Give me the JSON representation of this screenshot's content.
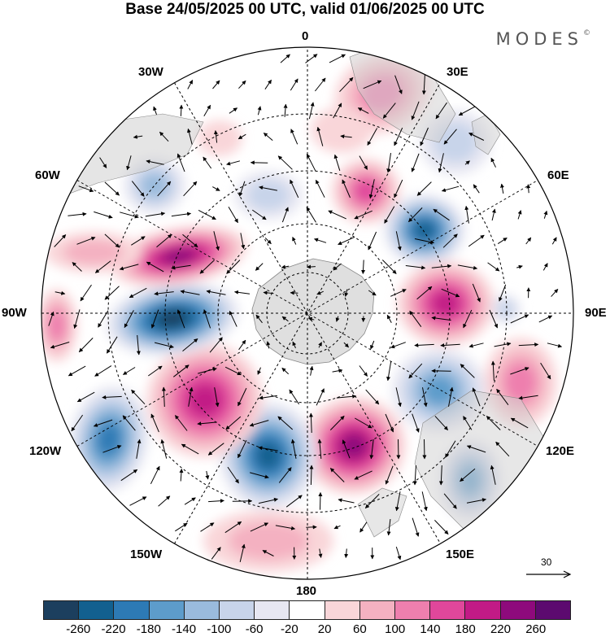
{
  "header": {
    "title": "Base 24/05/2025 00 UTC, valid 01/06/2025 00 UTC",
    "brand": "MODES",
    "brand_mark": "©"
  },
  "map": {
    "projection": "south-polar-stereographic",
    "ocean_color": "#ffffff",
    "land_color": "#d9d9d9",
    "longitude_labels": {
      "top": "0",
      "e30": "30E",
      "e60": "60E",
      "e90": "90E",
      "e120": "120E",
      "e150": "150E",
      "bottom": "180",
      "w150": "150W",
      "w120": "120W",
      "w90": "90W",
      "w60": "60W",
      "w30": "30W"
    },
    "vector_reference": {
      "label": "30"
    }
  },
  "colorbar": {
    "colors": [
      "#1c3f5e",
      "#12608f",
      "#2d7ab5",
      "#5d9ccb",
      "#9abbdd",
      "#c8d4ea",
      "#e7e7f2",
      "#ffffff",
      "#f9d6d9",
      "#f4b1c1",
      "#ee7fae",
      "#e0479b",
      "#c21a86",
      "#8e0a7c",
      "#5c0a6f"
    ],
    "ticks": [
      "-260",
      "-220",
      "-180",
      "-140",
      "-100",
      "-60",
      "-20",
      "20",
      "60",
      "100",
      "140",
      "180",
      "220",
      "260"
    ]
  }
}
